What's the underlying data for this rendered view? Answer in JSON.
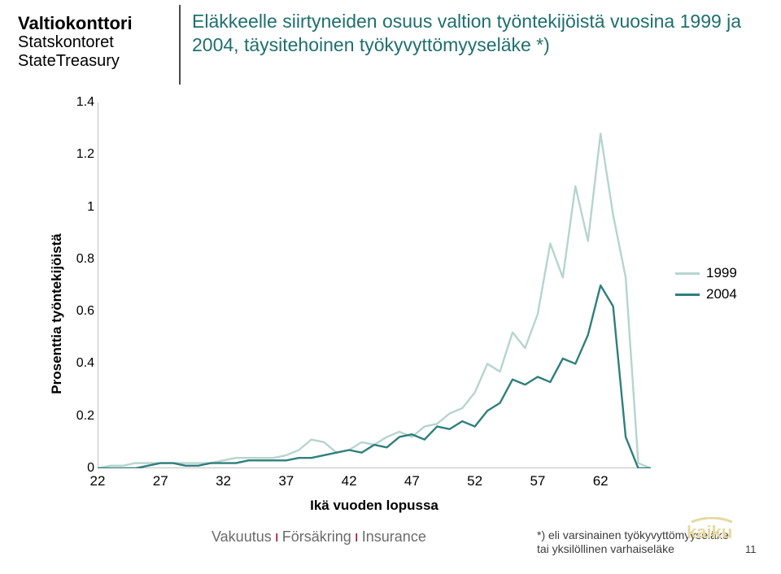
{
  "logo": {
    "line1": "Valtiokonttori",
    "line2": "Statskontoret",
    "line3": "StateTreasury"
  },
  "title": "Eläkkeelle siirtyneiden osuus valtion työntekijöistä vuosina 1999 ja 2004,  täysitehoinen työkyvyttömyyseläke *)",
  "chart": {
    "type": "line",
    "xlabel": "Ikä vuoden lopussa",
    "ylabel": "Prosenttia työntekijöistä",
    "xlim": [
      22,
      66
    ],
    "ylim": [
      0,
      1.4
    ],
    "yticks": [
      0,
      0.2,
      0.4,
      0.6,
      0.8,
      1,
      1.2,
      1.4
    ],
    "xticks": [
      22,
      27,
      32,
      37,
      42,
      47,
      52,
      57,
      62
    ],
    "grid": false,
    "background_color": "#ffffff",
    "axis_color": "#808080",
    "axis_width": 1,
    "label_fontsize": 17,
    "label_fontweight": "700",
    "tick_fontsize": 16,
    "line_width": 2.4,
    "series": [
      {
        "name": "1999",
        "color": "#b6d4ce",
        "data": [
          [
            22,
            0.0
          ],
          [
            23,
            0.01
          ],
          [
            24,
            0.01
          ],
          [
            25,
            0.02
          ],
          [
            26,
            0.02
          ],
          [
            27,
            0.02
          ],
          [
            28,
            0.02
          ],
          [
            29,
            0.02
          ],
          [
            30,
            0.02
          ],
          [
            31,
            0.02
          ],
          [
            32,
            0.03
          ],
          [
            33,
            0.04
          ],
          [
            34,
            0.04
          ],
          [
            35,
            0.04
          ],
          [
            36,
            0.04
          ],
          [
            37,
            0.05
          ],
          [
            38,
            0.07
          ],
          [
            39,
            0.11
          ],
          [
            40,
            0.1
          ],
          [
            41,
            0.06
          ],
          [
            42,
            0.07
          ],
          [
            43,
            0.1
          ],
          [
            44,
            0.09
          ],
          [
            45,
            0.12
          ],
          [
            46,
            0.14
          ],
          [
            47,
            0.12
          ],
          [
            48,
            0.16
          ],
          [
            49,
            0.17
          ],
          [
            50,
            0.21
          ],
          [
            51,
            0.23
          ],
          [
            52,
            0.29
          ],
          [
            53,
            0.4
          ],
          [
            54,
            0.37
          ],
          [
            55,
            0.52
          ],
          [
            56,
            0.46
          ],
          [
            57,
            0.59
          ],
          [
            58,
            0.86
          ],
          [
            59,
            0.73
          ],
          [
            60,
            1.08
          ],
          [
            61,
            0.87
          ],
          [
            62,
            1.28
          ],
          [
            63,
            0.97
          ],
          [
            64,
            0.73
          ],
          [
            65,
            0.02
          ],
          [
            66,
            0.0
          ]
        ]
      },
      {
        "name": "2004",
        "color": "#2f7f7c",
        "data": [
          [
            22,
            0.0
          ],
          [
            23,
            0.0
          ],
          [
            24,
            0.0
          ],
          [
            25,
            0.0
          ],
          [
            26,
            0.01
          ],
          [
            27,
            0.02
          ],
          [
            28,
            0.02
          ],
          [
            29,
            0.01
          ],
          [
            30,
            0.01
          ],
          [
            31,
            0.02
          ],
          [
            32,
            0.02
          ],
          [
            33,
            0.02
          ],
          [
            34,
            0.03
          ],
          [
            35,
            0.03
          ],
          [
            36,
            0.03
          ],
          [
            37,
            0.03
          ],
          [
            38,
            0.04
          ],
          [
            39,
            0.04
          ],
          [
            40,
            0.05
          ],
          [
            41,
            0.06
          ],
          [
            42,
            0.07
          ],
          [
            43,
            0.06
          ],
          [
            44,
            0.09
          ],
          [
            45,
            0.08
          ],
          [
            46,
            0.12
          ],
          [
            47,
            0.13
          ],
          [
            48,
            0.11
          ],
          [
            49,
            0.16
          ],
          [
            50,
            0.15
          ],
          [
            51,
            0.18
          ],
          [
            52,
            0.16
          ],
          [
            53,
            0.22
          ],
          [
            54,
            0.25
          ],
          [
            55,
            0.34
          ],
          [
            56,
            0.32
          ],
          [
            57,
            0.35
          ],
          [
            58,
            0.33
          ],
          [
            59,
            0.42
          ],
          [
            60,
            0.4
          ],
          [
            61,
            0.51
          ],
          [
            62,
            0.7
          ],
          [
            63,
            0.62
          ],
          [
            64,
            0.12
          ],
          [
            65,
            0.0
          ],
          [
            66,
            0.0
          ]
        ]
      }
    ],
    "legend": {
      "entries": [
        {
          "label": "1999",
          "color": "#b6d4ce"
        },
        {
          "label": "2004",
          "color": "#2f7f7c"
        }
      ]
    }
  },
  "footer": {
    "insurance": [
      "Vakuutus",
      "Försäkring",
      "Insurance"
    ],
    "note_line1": "*) eli varsinainen työkyvyttömyyseläke",
    "note_line2": "tai yksilöllinen varhaiseläke",
    "page_number": "11",
    "kaiku_color": "#e6d9a0"
  }
}
